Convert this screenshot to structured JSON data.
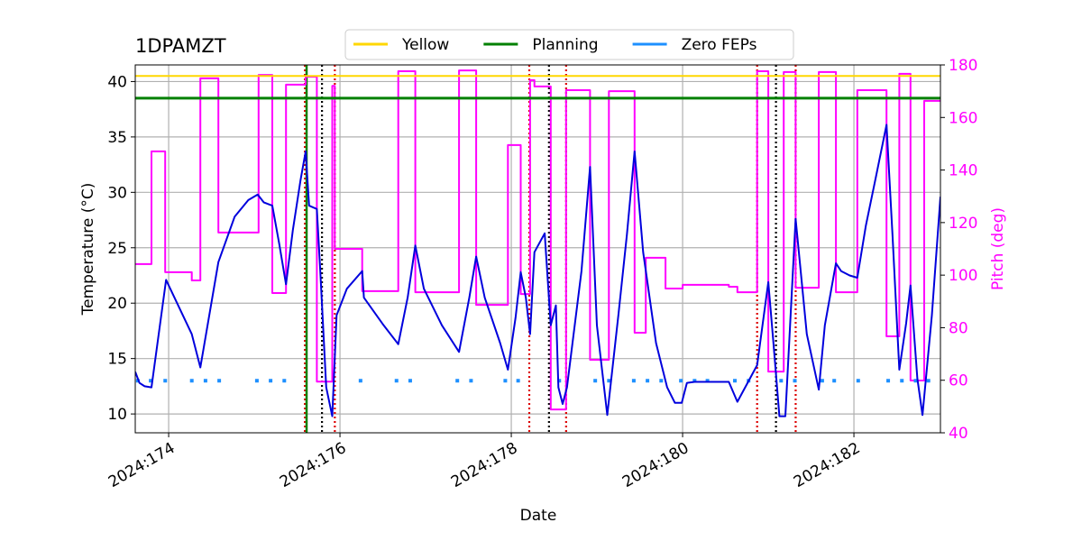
{
  "chart_data": {
    "type": "line",
    "title": "1DPAMZT",
    "xlabel": "Date",
    "ylabel": "Temperature (°C)",
    "y2label": "Pitch (deg)",
    "y2color": "#ff00ff",
    "xlim": [
      173.61,
      183.01
    ],
    "xticks": [
      {
        "value": 174,
        "label": "2024:174"
      },
      {
        "value": 176,
        "label": "2024:176"
      },
      {
        "value": 178,
        "label": "2024:178"
      },
      {
        "value": 180,
        "label": "2024:180"
      },
      {
        "value": 182,
        "label": "2024:182"
      }
    ],
    "ylim": [
      8.3,
      41.5
    ],
    "yticks": [
      10,
      15,
      20,
      25,
      30,
      35,
      40
    ],
    "y2lim": [
      40,
      180
    ],
    "y2ticks": [
      40,
      60,
      80,
      100,
      120,
      140,
      160,
      180
    ],
    "grid": true,
    "legend": "top",
    "series": [
      {
        "name": "Yellow",
        "color": "#ffd700",
        "style": "hline",
        "y": 40.5
      },
      {
        "name": "Planning",
        "color": "#008000",
        "style": "hline",
        "y": 38.5
      },
      {
        "name": "Zero FEPs",
        "color": "#1e90ff",
        "style": "dots",
        "x": [
          173.64,
          173.79,
          173.96,
          174.27,
          174.43,
          174.59,
          175.03,
          175.19,
          175.35,
          176.24,
          176.66,
          176.82,
          177.37,
          177.53,
          177.93,
          178.08,
          178.56,
          178.98,
          179.14,
          179.43,
          179.59,
          179.75,
          179.98,
          180.14,
          180.29,
          180.61,
          180.77,
          181.15,
          181.31,
          181.63,
          181.77,
          182.05,
          182.4,
          182.56,
          182.72,
          182.87
        ],
        "values": [
          13,
          13,
          13,
          13,
          13,
          13,
          13,
          13,
          13,
          13,
          13,
          13,
          13,
          13,
          13,
          13,
          13,
          13,
          13,
          13,
          13,
          13,
          13,
          13,
          13,
          13,
          13,
          13,
          13,
          13,
          13,
          13,
          13,
          13,
          13,
          13
        ]
      },
      {
        "color": "#0000dd",
        "style": "line",
        "x": [
          173.61,
          173.66,
          173.72,
          173.8,
          173.97,
          174.27,
          174.37,
          174.58,
          174.77,
          174.93,
          175.04,
          175.11,
          175.21,
          175.29,
          175.37,
          175.45,
          175.54,
          175.6,
          175.64,
          175.73,
          175.77,
          175.84,
          175.91,
          175.96,
          176.08,
          176.26,
          176.28,
          176.51,
          176.68,
          176.79,
          176.88,
          176.98,
          177.19,
          177.39,
          177.51,
          177.59,
          177.69,
          177.87,
          177.96,
          178.05,
          178.11,
          178.17,
          178.22,
          178.27,
          178.39,
          178.46,
          178.52,
          178.55,
          178.6,
          178.65,
          178.82,
          178.92,
          179.0,
          179.12,
          179.25,
          179.35,
          179.44,
          179.54,
          179.69,
          179.82,
          179.91,
          179.99,
          180.05,
          180.14,
          180.54,
          180.64,
          180.87,
          181.0,
          181.06,
          181.13,
          181.2,
          181.32,
          181.45,
          181.59,
          181.66,
          181.79,
          181.85,
          181.95,
          182.04,
          182.14,
          182.26,
          182.38,
          182.45,
          182.53,
          182.61,
          182.66,
          182.74,
          182.8,
          182.91,
          183.01
        ],
        "values": [
          13.8,
          12.8,
          12.5,
          12.4,
          22.1,
          17.2,
          14.2,
          23.7,
          27.8,
          29.3,
          29.8,
          29.1,
          28.8,
          25.4,
          21.7,
          26.6,
          31.1,
          33.7,
          28.8,
          28.5,
          22.9,
          12.4,
          9.8,
          18.9,
          21.3,
          22.9,
          20.5,
          18.0,
          16.3,
          20.5,
          25.2,
          21.3,
          18.0,
          15.6,
          20.5,
          24.2,
          20.5,
          16.4,
          14.0,
          18.7,
          22.8,
          20.5,
          17.2,
          24.6,
          26.3,
          18.0,
          19.8,
          12.4,
          10.9,
          12.4,
          22.9,
          32.3,
          18.0,
          9.9,
          18.9,
          26.2,
          33.7,
          24.6,
          16.4,
          12.4,
          11.0,
          11.0,
          12.8,
          12.9,
          12.9,
          11.1,
          14.4,
          21.9,
          16.4,
          9.8,
          9.8,
          27.6,
          17.2,
          12.2,
          18.0,
          23.6,
          22.9,
          22.5,
          22.3,
          27.0,
          31.5,
          36.1,
          26.2,
          14.0,
          18.2,
          21.6,
          13.2,
          9.9,
          18.9,
          29.6
        ]
      },
      {
        "color": "#ff00ff",
        "style": "line",
        "axis": "y2",
        "x": [
          173.61,
          173.8,
          173.8,
          173.96,
          173.96,
          174.27,
          174.27,
          174.37,
          174.37,
          174.58,
          174.58,
          175.05,
          175.05,
          175.21,
          175.21,
          175.37,
          175.37,
          175.6,
          175.6,
          175.73,
          175.73,
          175.91,
          175.91,
          175.94,
          175.94,
          176.26,
          176.26,
          176.68,
          176.68,
          176.88,
          176.88,
          177.39,
          177.39,
          177.59,
          177.59,
          177.96,
          177.96,
          178.11,
          178.11,
          178.22,
          178.22,
          178.27,
          178.27,
          178.46,
          178.46,
          178.64,
          178.64,
          178.92,
          178.92,
          179.14,
          179.14,
          179.44,
          179.44,
          179.57,
          179.57,
          179.8,
          179.8,
          180.0,
          180.0,
          180.54,
          180.54,
          180.64,
          180.64,
          180.87,
          180.87,
          181.0,
          181.0,
          181.18,
          181.18,
          181.32,
          181.32,
          181.59,
          181.59,
          181.79,
          181.79,
          182.04,
          182.04,
          182.38,
          182.38,
          182.53,
          182.53,
          182.66,
          182.66,
          182.82,
          182.82,
          183.01
        ],
        "values": [
          104.2,
          104.2,
          147.1,
          147.1,
          101.1,
          101.1,
          98.0,
          98.0,
          174.9,
          174.9,
          116.2,
          116.2,
          176.2,
          176.2,
          93.2,
          93.2,
          172.5,
          172.5,
          175.5,
          175.5,
          59.5,
          59.5,
          172.0,
          172.0,
          110.0,
          110.0,
          93.9,
          93.9,
          177.6,
          177.6,
          93.5,
          93.5,
          177.9,
          177.9,
          88.7,
          88.7,
          149.5,
          149.5,
          92.8,
          92.8,
          174.2,
          174.2,
          171.8,
          171.8,
          48.9,
          48.9,
          170.4,
          170.4,
          67.8,
          67.8,
          170.0,
          170.0,
          78.1,
          78.1,
          106.6,
          106.6,
          94.9,
          94.9,
          96.3,
          96.3,
          95.6,
          95.6,
          93.5,
          93.5,
          177.6,
          177.6,
          63.3,
          63.3,
          177.3,
          177.3,
          95.2,
          95.2,
          177.3,
          177.3,
          93.5,
          93.5,
          170.4,
          170.4,
          76.7,
          76.7,
          176.6,
          176.6,
          59.9,
          59.9,
          166.3,
          166.3
        ]
      }
    ],
    "vlines": [
      {
        "x": 175.59,
        "color": "#dd0000",
        "style": "dotted"
      },
      {
        "x": 175.61,
        "color": "#008000",
        "style": "solid"
      },
      {
        "x": 175.79,
        "color": "#000000",
        "style": "dotted"
      },
      {
        "x": 175.94,
        "color": "#dd0000",
        "style": "dotted"
      },
      {
        "x": 178.21,
        "color": "#dd0000",
        "style": "dotted"
      },
      {
        "x": 178.44,
        "color": "#000000",
        "style": "dotted"
      },
      {
        "x": 178.64,
        "color": "#dd0000",
        "style": "dotted"
      },
      {
        "x": 180.87,
        "color": "#dd0000",
        "style": "dotted"
      },
      {
        "x": 181.09,
        "color": "#000000",
        "style": "dotted"
      },
      {
        "x": 181.32,
        "color": "#dd0000",
        "style": "dotted"
      }
    ]
  }
}
